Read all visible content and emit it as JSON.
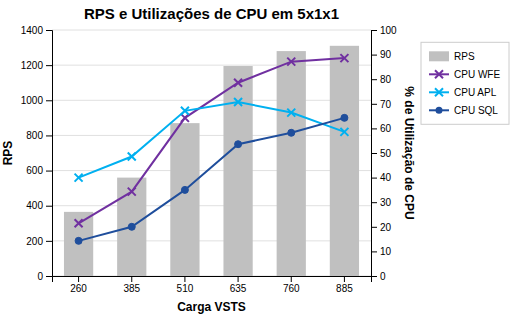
{
  "chart_data": {
    "type": "bar",
    "title": "RPS e Utilizações de CPU em 5x1x1",
    "xlabel": "Carga VSTS",
    "ylabel": "RPS",
    "y2label": "% de Utilização de CPU",
    "categories": [
      "260",
      "385",
      "510",
      "635",
      "760",
      "885"
    ],
    "series": [
      {
        "name": "RPS",
        "type": "bar",
        "color": "#c0c0c0",
        "values": [
          365,
          560,
          870,
          1195,
          1280,
          1310
        ]
      },
      {
        "name": "CPU WFE",
        "type": "line",
        "color": "#7030a0",
        "marker": "x",
        "values": [
          300,
          480,
          900,
          1100,
          1220,
          1240
        ]
      },
      {
        "name": "CPU APL",
        "type": "line",
        "color": "#00b0f0",
        "marker": "x",
        "values": [
          560,
          680,
          940,
          990,
          930,
          820
        ]
      },
      {
        "name": "CPU SQL",
        "type": "line",
        "color": "#1f4e9c",
        "marker": "o",
        "values": [
          200,
          280,
          490,
          750,
          815,
          900
        ]
      }
    ],
    "ylim": [
      0,
      1400
    ],
    "yticks": [
      0,
      200,
      400,
      600,
      800,
      1000,
      1200,
      1400
    ],
    "y2lim": [
      0,
      100
    ],
    "y2ticks": [
      0,
      10,
      20,
      30,
      40,
      50,
      60,
      70,
      80,
      90,
      100
    ],
    "grid": true,
    "legend": "right"
  }
}
